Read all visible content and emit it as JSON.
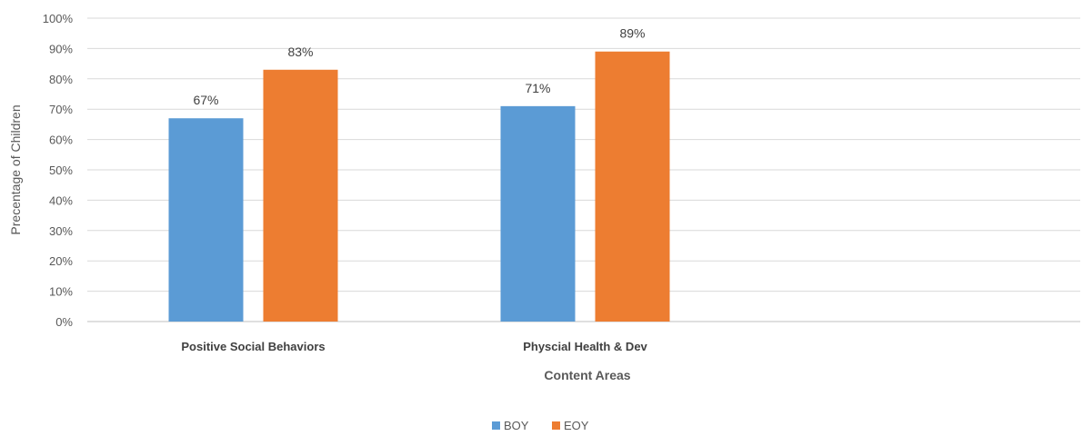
{
  "chart_data": {
    "type": "bar",
    "categories": [
      "Positive Social Behaviors",
      "Physcial Health & Dev"
    ],
    "series": [
      {
        "name": "BOY",
        "values": [
          67,
          71
        ],
        "color": "#5B9BD5"
      },
      {
        "name": "EOY",
        "values": [
          83,
          89
        ],
        "color": "#ED7D31"
      }
    ],
    "data_labels": [
      [
        "67%",
        "71%"
      ],
      [
        "83%",
        "89%"
      ]
    ],
    "xlabel": "Content Areas",
    "ylabel": "Precentage of Children",
    "ylim": [
      0,
      100
    ],
    "y_ticks": [
      "0%",
      "10%",
      "20%",
      "30%",
      "40%",
      "50%",
      "60%",
      "70%",
      "80%",
      "90%",
      "100%"
    ],
    "grid": true,
    "legend_position": "bottom"
  }
}
